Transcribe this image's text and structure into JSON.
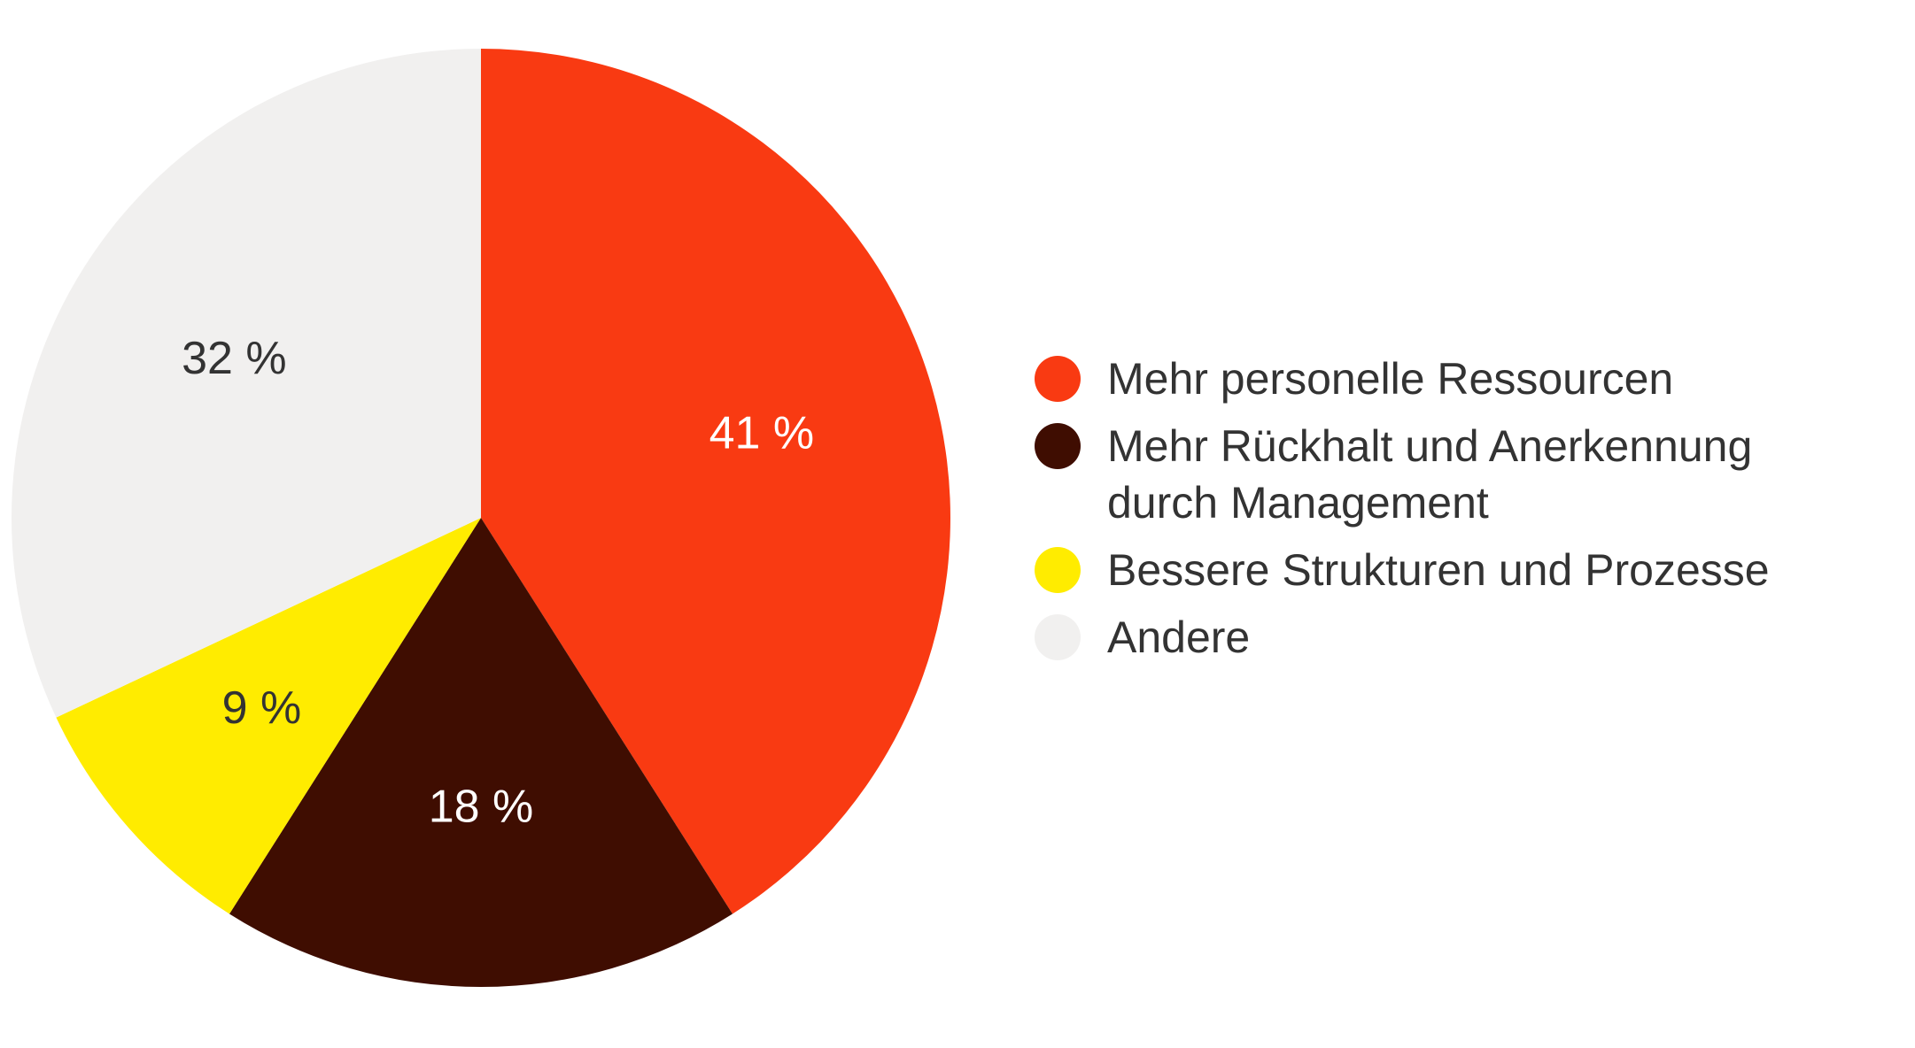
{
  "chart_data": {
    "type": "pie",
    "title": "",
    "unit": "%",
    "slices": [
      {
        "label": "Mehr personelle Ressourcen",
        "value": 41,
        "value_label": "41 %",
        "color": "#f93a12",
        "label_color": "#ffffff"
      },
      {
        "label": "Mehr Rückhalt und Anerkennung durch Management",
        "value": 18,
        "value_label": "18 %",
        "color": "#3f0d01",
        "label_color": "#ffffff"
      },
      {
        "label": "Bessere Strukturen und Prozesse",
        "value": 9,
        "value_label": "9 %",
        "color": "#ffec00",
        "label_color": "#333333"
      },
      {
        "label": "Andere",
        "value": 32,
        "value_label": "32 %",
        "color": "#f1f0ef",
        "label_color": "#333333"
      }
    ],
    "start_angle": "12 o'clock",
    "direction": "clockwise",
    "legend_position": "right"
  }
}
